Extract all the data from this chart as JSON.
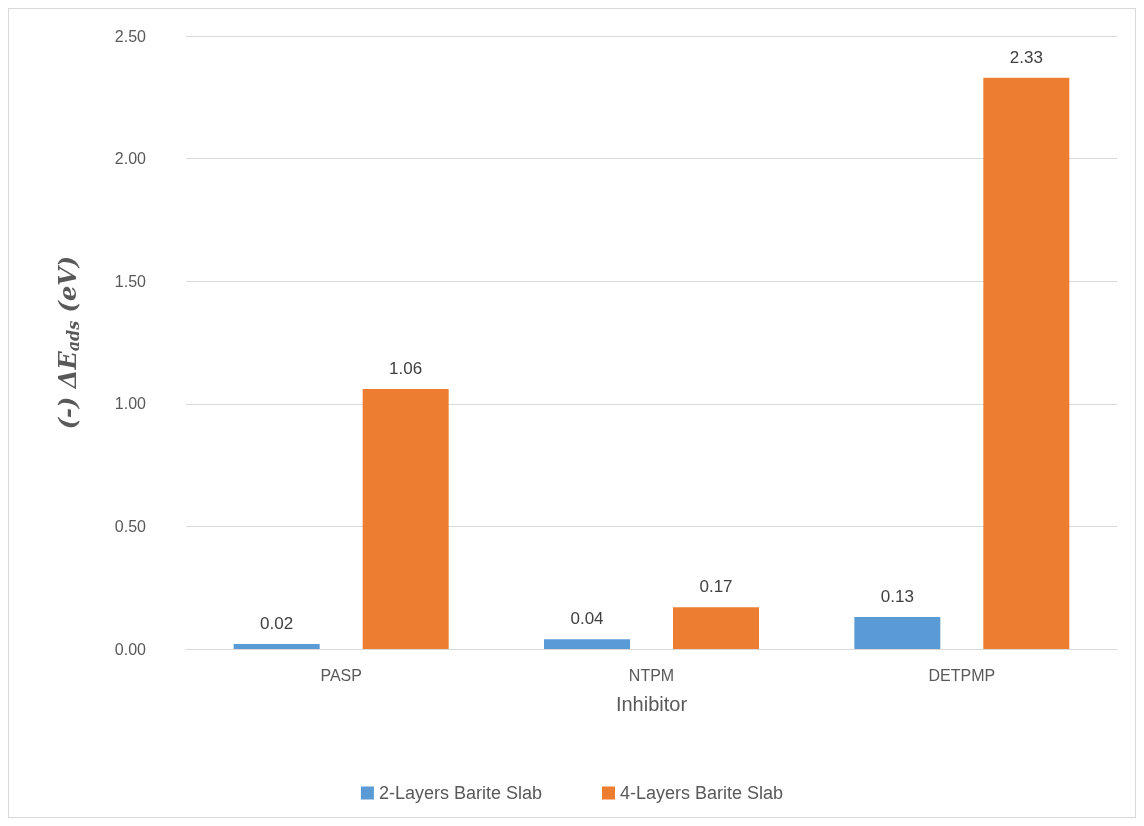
{
  "chart_data": {
    "type": "bar",
    "xlabel": "Inhibitor",
    "ylabel": "(-) ΔE$_{ads}$ (eV)",
    "categories": [
      "PASP",
      "NTPM",
      "DETPMP"
    ],
    "series": [
      {
        "name": "2-Layers Barite Slab",
        "color": "#5b9bd5",
        "values": [
          0.02,
          0.04,
          0.13
        ]
      },
      {
        "name": "4-Layers Barite Slab",
        "color": "#ed7d31",
        "values": [
          1.06,
          0.17,
          2.33
        ]
      }
    ],
    "ylim": [
      0,
      2.5
    ],
    "yticks": [
      {
        "value": 0,
        "label": "0.00"
      },
      {
        "value": 0.5,
        "label": "0.50"
      },
      {
        "value": 1,
        "label": "1.00"
      },
      {
        "value": 1.5,
        "label": "1.50"
      },
      {
        "value": 2,
        "label": "2.00"
      },
      {
        "value": 2.5,
        "label": "2.50"
      }
    ],
    "grid": "y",
    "legend": "bottom",
    "data_labels": true
  }
}
